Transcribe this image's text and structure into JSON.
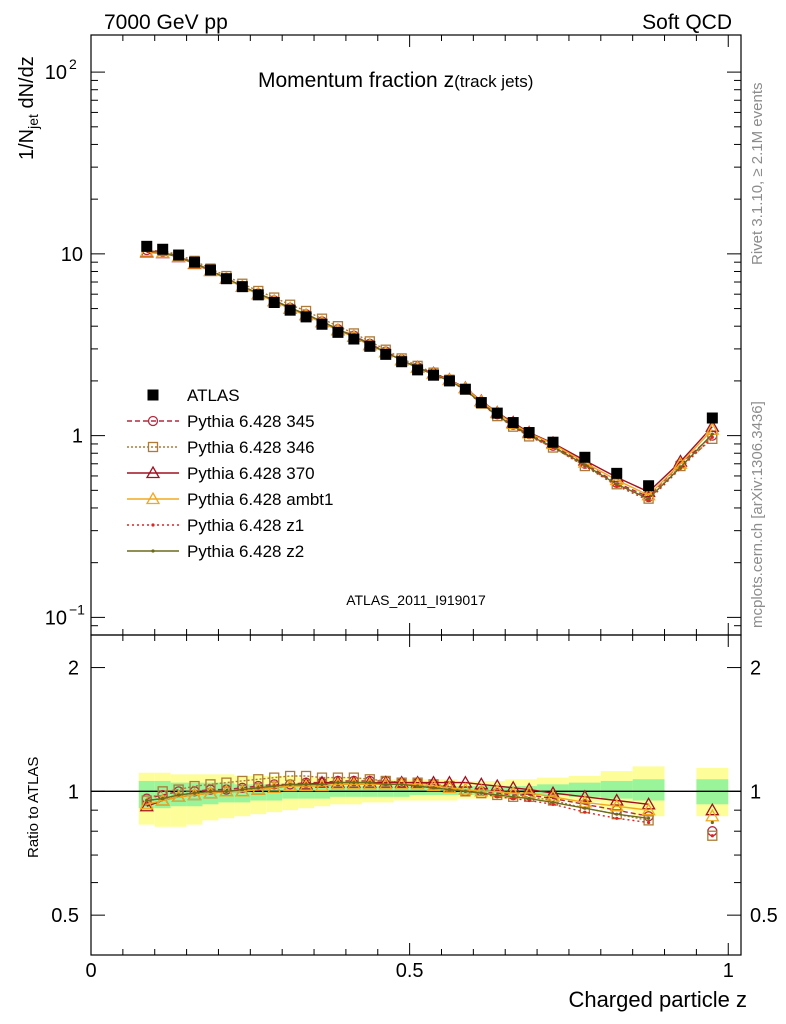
{
  "header": {
    "left": "7000 GeV pp",
    "right": "Soft QCD"
  },
  "side_labels": {
    "rivet": "Rivet 3.1.10, ≥ 2.1M events",
    "mcplots": "mcplots.cern.ch [arXiv:1306.3436]"
  },
  "chart_data": {
    "type": "scatter",
    "title": "Momentum fraction z(track jets)",
    "title_main": "Momentum fraction z",
    "title_sub": "(track jets)",
    "analysis_id": "ATLAS_2011_I919017",
    "xlabel": "Charged particle z",
    "ylabel_main": "1/N_jet dN/dz",
    "ylabel_ratio": "Ratio to ATLAS",
    "xlim": [
      0,
      1.02
    ],
    "ylim_main": [
      0.08,
      160
    ],
    "y_scale_main": "log",
    "ylim_ratio": [
      0.4,
      2.4
    ],
    "y_scale_ratio": "log",
    "x_ticks": [
      {
        "v": 0,
        "label": "0"
      },
      {
        "v": 0.5,
        "label": "0.5"
      },
      {
        "v": 1,
        "label": "1"
      }
    ],
    "y_ticks_main": [
      {
        "v": 0.1,
        "base": "10",
        "exp": "−1"
      },
      {
        "v": 1,
        "base": "1",
        "exp": ""
      },
      {
        "v": 10,
        "base": "10",
        "exp": ""
      },
      {
        "v": 100,
        "base": "10",
        "exp": "2"
      }
    ],
    "y_ticks_ratio": [
      {
        "v": 0.5,
        "label": "0.5"
      },
      {
        "v": 1,
        "label": "1"
      },
      {
        "v": 2,
        "label": "2"
      }
    ],
    "bins": [
      [
        0.075,
        0.1
      ],
      [
        0.1,
        0.125
      ],
      [
        0.125,
        0.15
      ],
      [
        0.15,
        0.175
      ],
      [
        0.175,
        0.2
      ],
      [
        0.2,
        0.225
      ],
      [
        0.225,
        0.25
      ],
      [
        0.25,
        0.275
      ],
      [
        0.275,
        0.3
      ],
      [
        0.3,
        0.325
      ],
      [
        0.325,
        0.35
      ],
      [
        0.35,
        0.375
      ],
      [
        0.375,
        0.4
      ],
      [
        0.4,
        0.425
      ],
      [
        0.425,
        0.45
      ],
      [
        0.45,
        0.475
      ],
      [
        0.475,
        0.5
      ],
      [
        0.5,
        0.525
      ],
      [
        0.525,
        0.55
      ],
      [
        0.55,
        0.575
      ],
      [
        0.575,
        0.6
      ],
      [
        0.6,
        0.625
      ],
      [
        0.625,
        0.65
      ],
      [
        0.65,
        0.675
      ],
      [
        0.675,
        0.7
      ],
      [
        0.7,
        0.75
      ],
      [
        0.75,
        0.8
      ],
      [
        0.8,
        0.85
      ],
      [
        0.85,
        0.9
      ],
      [
        0.9,
        0.95
      ],
      [
        0.95,
        1.0
      ]
    ],
    "x": [
      0.0875,
      0.1125,
      0.1375,
      0.1625,
      0.1875,
      0.2125,
      0.2375,
      0.2625,
      0.2875,
      0.3125,
      0.3375,
      0.3625,
      0.3875,
      0.4125,
      0.4375,
      0.4625,
      0.4875,
      0.5125,
      0.5375,
      0.5625,
      0.5875,
      0.6125,
      0.6375,
      0.6625,
      0.6875,
      0.725,
      0.775,
      0.825,
      0.875,
      0.925,
      0.975
    ],
    "data": {
      "name": "ATLAS",
      "x": [
        0.0875,
        0.1125,
        0.1375,
        0.1625,
        0.1875,
        0.2125,
        0.2375,
        0.2625,
        0.2875,
        0.3125,
        0.3375,
        0.3625,
        0.3875,
        0.4125,
        0.4375,
        0.4625,
        0.4875,
        0.5125,
        0.5375,
        0.5625,
        0.5875,
        0.6125,
        0.6375,
        0.6625,
        0.6875,
        0.725,
        0.775,
        0.825,
        0.875,
        0.975
      ],
      "values": [
        11.0,
        10.6,
        9.85,
        9.0,
        8.15,
        7.3,
        6.6,
        5.95,
        5.4,
        4.9,
        4.5,
        4.1,
        3.7,
        3.4,
        3.1,
        2.8,
        2.55,
        2.3,
        2.15,
        2.0,
        1.8,
        1.52,
        1.33,
        1.18,
        1.04,
        0.92,
        0.76,
        0.62,
        0.53,
        1.25
      ]
    },
    "band_outer": {
      "x": [
        0.0875,
        0.1125,
        0.1375,
        0.1625,
        0.1875,
        0.2125,
        0.2375,
        0.2625,
        0.2875,
        0.3125,
        0.3375,
        0.3625,
        0.3875,
        0.4125,
        0.4375,
        0.4625,
        0.4875,
        0.5125,
        0.5375,
        0.5625,
        0.5875,
        0.6125,
        0.6375,
        0.6625,
        0.6875,
        0.725,
        0.775,
        0.825,
        0.875,
        0.975
      ],
      "low": [
        0.83,
        0.82,
        0.82,
        0.83,
        0.85,
        0.86,
        0.87,
        0.88,
        0.89,
        0.9,
        0.91,
        0.92,
        0.93,
        0.93,
        0.94,
        0.94,
        0.95,
        0.95,
        0.95,
        0.95,
        0.96,
        0.96,
        0.96,
        0.96,
        0.96,
        0.95,
        0.94,
        0.9,
        0.87,
        0.87
      ],
      "high": [
        1.11,
        1.11,
        1.1,
        1.1,
        1.1,
        1.1,
        1.09,
        1.09,
        1.09,
        1.09,
        1.08,
        1.08,
        1.08,
        1.08,
        1.07,
        1.07,
        1.07,
        1.07,
        1.07,
        1.07,
        1.06,
        1.06,
        1.06,
        1.07,
        1.07,
        1.08,
        1.09,
        1.12,
        1.15,
        1.14
      ]
    },
    "band_inner": {
      "x": [
        0.0875,
        0.1125,
        0.1375,
        0.1625,
        0.1875,
        0.2125,
        0.2375,
        0.2625,
        0.2875,
        0.3125,
        0.3375,
        0.3625,
        0.3875,
        0.4125,
        0.4375,
        0.4625,
        0.4875,
        0.5125,
        0.5375,
        0.5625,
        0.5875,
        0.6125,
        0.6375,
        0.6625,
        0.6875,
        0.725,
        0.775,
        0.825,
        0.875,
        0.975
      ],
      "low": [
        0.91,
        0.91,
        0.92,
        0.92,
        0.93,
        0.94,
        0.94,
        0.95,
        0.95,
        0.96,
        0.96,
        0.96,
        0.97,
        0.97,
        0.97,
        0.97,
        0.97,
        0.98,
        0.98,
        0.98,
        0.98,
        0.98,
        0.98,
        0.98,
        0.98,
        0.98,
        0.97,
        0.96,
        0.95,
        0.93
      ],
      "high": [
        1.06,
        1.06,
        1.05,
        1.05,
        1.05,
        1.05,
        1.04,
        1.04,
        1.04,
        1.04,
        1.04,
        1.04,
        1.03,
        1.03,
        1.03,
        1.03,
        1.03,
        1.03,
        1.03,
        1.03,
        1.03,
        1.03,
        1.03,
        1.03,
        1.03,
        1.04,
        1.05,
        1.06,
        1.07,
        1.07
      ]
    },
    "series": [
      {
        "name": "Pythia 6.428 345",
        "color": "#b22a3d",
        "dash": "5,3",
        "marker": "circle-open",
        "values": [
          10.5,
          10.3,
          9.7,
          8.95,
          8.1,
          7.35,
          6.65,
          6.05,
          5.55,
          5.05,
          4.65,
          4.25,
          3.85,
          3.55,
          3.2,
          2.9,
          2.62,
          2.38,
          2.2,
          2.03,
          1.8,
          1.52,
          1.31,
          1.15,
          1.02,
          0.88,
          0.7,
          0.55,
          0.46,
          0.7,
          1.0
        ]
      },
      {
        "name": "Pythia 6.428 346",
        "color": "#ad7a37",
        "dash": "2,2",
        "marker": "square-open",
        "values": [
          10.3,
          10.4,
          9.9,
          9.15,
          8.3,
          7.55,
          6.85,
          6.25,
          5.75,
          5.25,
          4.85,
          4.4,
          4.0,
          3.65,
          3.3,
          2.97,
          2.66,
          2.42,
          2.22,
          2.03,
          1.8,
          1.5,
          1.28,
          1.12,
          0.99,
          0.86,
          0.68,
          0.54,
          0.45,
          0.68,
          0.96
        ]
      },
      {
        "name": "Pythia 6.428 370",
        "color": "#a01020",
        "dash": "",
        "marker": "triangle-open",
        "values": [
          10.2,
          10.1,
          9.6,
          8.8,
          8.05,
          7.3,
          6.6,
          6.0,
          5.5,
          5.0,
          4.6,
          4.2,
          3.8,
          3.5,
          3.15,
          2.87,
          2.6,
          2.37,
          2.2,
          2.03,
          1.83,
          1.55,
          1.34,
          1.18,
          1.04,
          0.91,
          0.73,
          0.59,
          0.49,
          0.72,
          1.12
        ]
      },
      {
        "name": "Pythia 6.428 ambt1",
        "color": "#f2a81e",
        "dash": "",
        "marker": "triangle-open",
        "values": [
          10.3,
          10.15,
          9.65,
          8.85,
          8.05,
          7.3,
          6.6,
          6.0,
          5.5,
          5.0,
          4.6,
          4.2,
          3.8,
          3.5,
          3.15,
          2.87,
          2.6,
          2.36,
          2.18,
          2.02,
          1.82,
          1.54,
          1.33,
          1.16,
          1.03,
          0.9,
          0.71,
          0.57,
          0.47,
          0.7,
          1.08
        ]
      },
      {
        "name": "Pythia 6.428 z1",
        "color": "#e32222",
        "dash": "2,3",
        "marker": "dot",
        "values": [
          10.4,
          10.2,
          9.65,
          8.9,
          8.1,
          7.35,
          6.65,
          6.05,
          5.55,
          5.05,
          4.65,
          4.25,
          3.85,
          3.52,
          3.18,
          2.88,
          2.6,
          2.36,
          2.17,
          2.0,
          1.78,
          1.49,
          1.28,
          1.12,
          0.99,
          0.86,
          0.68,
          0.53,
          0.44,
          0.66,
          0.98
        ]
      },
      {
        "name": "Pythia 6.428 z2",
        "color": "#6b6b1a",
        "dash": "",
        "marker": "dot",
        "values": [
          10.4,
          10.2,
          9.65,
          8.9,
          8.1,
          7.35,
          6.65,
          6.05,
          5.55,
          5.05,
          4.65,
          4.25,
          3.85,
          3.52,
          3.18,
          2.88,
          2.6,
          2.36,
          2.17,
          2.0,
          1.79,
          1.5,
          1.29,
          1.13,
          1.0,
          0.87,
          0.69,
          0.54,
          0.45,
          0.67,
          1.02
        ]
      }
    ],
    "ratios": [
      {
        "name": "Pythia 6.428 345",
        "values": [
          0.96,
          0.98,
          1.0,
          1.0,
          1.01,
          1.01,
          1.02,
          1.03,
          1.04,
          1.04,
          1.05,
          1.05,
          1.06,
          1.06,
          1.06,
          1.06,
          1.05,
          1.05,
          1.04,
          1.02,
          1.0,
          1.0,
          0.99,
          0.98,
          0.98,
          0.96,
          0.93,
          0.9,
          0.87,
          null,
          0.8
        ]
      },
      {
        "name": "Pythia 6.428 346",
        "values": [
          0.95,
          1.0,
          1.01,
          1.03,
          1.04,
          1.05,
          1.06,
          1.07,
          1.08,
          1.09,
          1.09,
          1.08,
          1.08,
          1.08,
          1.07,
          1.06,
          1.05,
          1.05,
          1.04,
          1.03,
          1.0,
          0.99,
          0.98,
          0.97,
          0.97,
          0.95,
          0.91,
          0.88,
          0.85,
          null,
          0.78
        ]
      },
      {
        "name": "Pythia 6.428 370",
        "values": [
          0.92,
          0.95,
          0.97,
          0.98,
          0.99,
          1.0,
          1.0,
          1.01,
          1.02,
          1.03,
          1.04,
          1.05,
          1.05,
          1.05,
          1.05,
          1.05,
          1.05,
          1.05,
          1.05,
          1.05,
          1.05,
          1.04,
          1.03,
          1.02,
          1.01,
          0.99,
          0.97,
          0.95,
          0.93,
          null,
          0.9
        ]
      },
      {
        "name": "Pythia 6.428 ambt1",
        "values": [
          0.93,
          0.95,
          0.97,
          0.98,
          0.99,
          1.0,
          1.0,
          1.01,
          1.02,
          1.03,
          1.03,
          1.03,
          1.04,
          1.04,
          1.04,
          1.04,
          1.04,
          1.04,
          1.03,
          1.02,
          1.01,
          1.0,
          1.0,
          0.99,
          0.99,
          0.97,
          0.94,
          0.92,
          0.9,
          null,
          0.87
        ]
      },
      {
        "name": "Pythia 6.428 z1",
        "values": [
          0.95,
          0.96,
          0.98,
          0.99,
          1.0,
          1.0,
          1.01,
          1.02,
          1.03,
          1.04,
          1.04,
          1.04,
          1.05,
          1.05,
          1.05,
          1.04,
          1.04,
          1.03,
          1.02,
          1.01,
          1.0,
          0.99,
          0.97,
          0.96,
          0.95,
          0.93,
          0.89,
          0.86,
          0.84,
          null,
          0.78
        ]
      },
      {
        "name": "Pythia 6.428 z2",
        "values": [
          0.95,
          0.96,
          0.98,
          0.99,
          1.0,
          1.0,
          1.01,
          1.02,
          1.03,
          1.04,
          1.04,
          1.04,
          1.05,
          1.05,
          1.05,
          1.04,
          1.04,
          1.03,
          1.02,
          1.01,
          1.0,
          0.99,
          0.98,
          0.97,
          0.96,
          0.94,
          0.91,
          0.88,
          0.86,
          null,
          0.84
        ]
      }
    ],
    "legend_position": "left-middle"
  }
}
